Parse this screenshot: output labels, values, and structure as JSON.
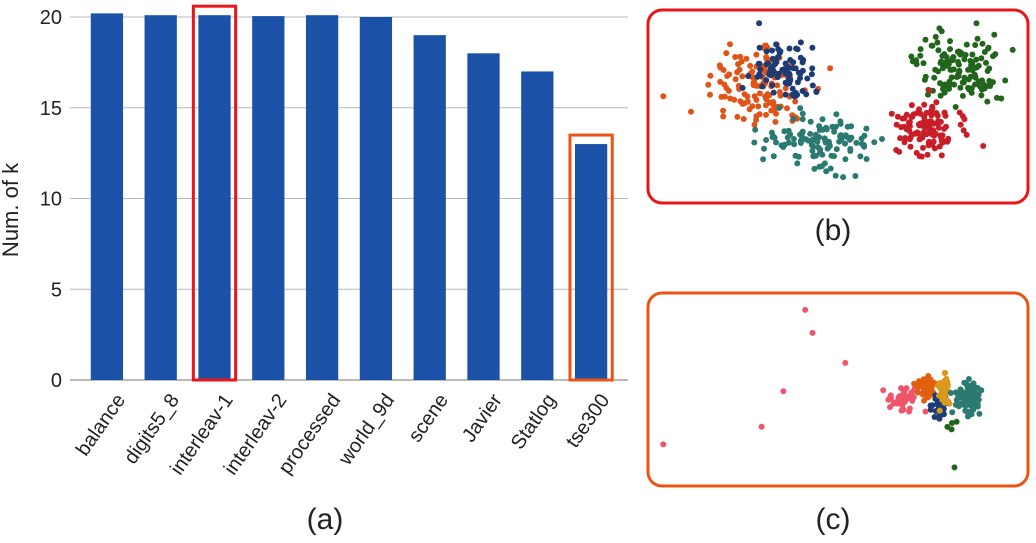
{
  "chart_data": [
    {
      "id": "a",
      "type": "bar",
      "ylabel": "Num. of k",
      "xlabel": "",
      "ylim": [
        0,
        20
      ],
      "yticks": [
        0,
        5,
        10,
        15,
        20
      ],
      "grid": true,
      "panel_label": "(a)",
      "categories": [
        "balance",
        "digits5_8",
        "interleav-1",
        "interleav-2",
        "processed",
        "world_9d",
        "scene",
        "Javier",
        "Statlog",
        "tse300"
      ],
      "values": [
        20.2,
        20.1,
        20.1,
        20.05,
        20.1,
        20.0,
        19.0,
        18.0,
        17.0,
        13.0
      ],
      "bar_color": "#1b52a8",
      "highlights": [
        {
          "category": "interleav-1",
          "color": "#e8151b"
        },
        {
          "category": "tse300",
          "color": "#ea5416"
        }
      ]
    },
    {
      "id": "b",
      "type": "scatter",
      "panel_label": "(b)",
      "frame_color": "#e8151b",
      "clusters": [
        {
          "color": "#e05418",
          "cx": 0.28,
          "cy": 0.38,
          "sx": 0.13,
          "sy": 0.24,
          "n": 130
        },
        {
          "color": "#1d3b75",
          "cx": 0.36,
          "cy": 0.3,
          "sx": 0.09,
          "sy": 0.17,
          "n": 80
        },
        {
          "color": "#2a7a71",
          "cx": 0.45,
          "cy": 0.7,
          "sx": 0.13,
          "sy": 0.15,
          "n": 115
        },
        {
          "color": "#22651c",
          "cx": 0.83,
          "cy": 0.28,
          "sx": 0.1,
          "sy": 0.16,
          "n": 130
        },
        {
          "color": "#c81e27",
          "cx": 0.75,
          "cy": 0.62,
          "sx": 0.09,
          "sy": 0.14,
          "n": 110
        }
      ]
    },
    {
      "id": "c",
      "type": "scatter",
      "panel_label": "(c)",
      "frame_color": "#ea5416",
      "clusters": [
        {
          "color": "#f0566a",
          "cx": 0.68,
          "cy": 0.55,
          "sx": 0.05,
          "sy": 0.07,
          "n": 45
        },
        {
          "color": "#e06010",
          "cx": 0.74,
          "cy": 0.48,
          "sx": 0.025,
          "sy": 0.05,
          "n": 45
        },
        {
          "color": "#1d3b75",
          "cx": 0.78,
          "cy": 0.6,
          "sx": 0.02,
          "sy": 0.06,
          "n": 35
        },
        {
          "color": "#d99a1c",
          "cx": 0.79,
          "cy": 0.5,
          "sx": 0.015,
          "sy": 0.07,
          "n": 45
        },
        {
          "color": "#2a7a71",
          "cx": 0.86,
          "cy": 0.55,
          "sx": 0.04,
          "sy": 0.08,
          "n": 90
        },
        {
          "color": "#22651c",
          "cx": 0.81,
          "cy": 0.7,
          "sx": 0.015,
          "sy": 0.03,
          "n": 4
        }
      ],
      "outliers": [
        {
          "color": "#f0566a",
          "x": 0.41,
          "y": 0.05
        },
        {
          "color": "#f0566a",
          "x": 0.43,
          "y": 0.18
        },
        {
          "color": "#f0566a",
          "x": 0.02,
          "y": 0.81
        },
        {
          "color": "#f0566a",
          "x": 0.29,
          "y": 0.71
        },
        {
          "color": "#f0566a",
          "x": 0.35,
          "y": 0.51
        },
        {
          "color": "#f0566a",
          "x": 0.52,
          "y": 0.35
        },
        {
          "color": "#22651c",
          "x": 0.82,
          "y": 0.94
        }
      ]
    }
  ]
}
